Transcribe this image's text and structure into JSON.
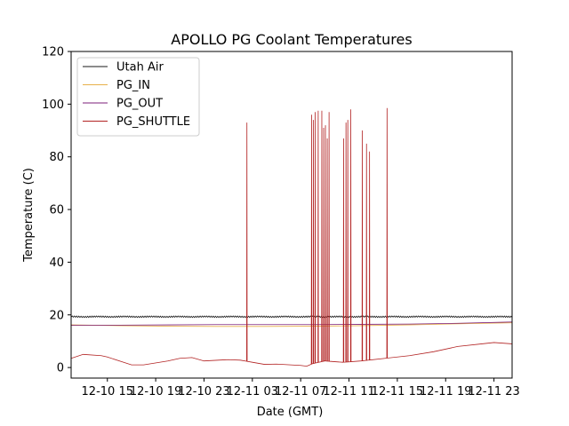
{
  "chart_data": {
    "type": "line",
    "title": "APOLLO PG Coolant Temperatures",
    "xlabel": "Date (GMT)",
    "ylabel": "Temperature (C)",
    "ylim": [
      -4,
      120
    ],
    "xlim": [
      12,
      48.5
    ],
    "y_ticks": [
      0,
      20,
      40,
      60,
      80,
      100,
      120
    ],
    "x_ticks": [
      {
        "value": 15,
        "label": "12-10 15"
      },
      {
        "value": 19,
        "label": "12-10 19"
      },
      {
        "value": 23,
        "label": "12-10 23"
      },
      {
        "value": 27,
        "label": "12-11 03"
      },
      {
        "value": 31,
        "label": "12-11 07"
      },
      {
        "value": 35,
        "label": "12-11 11"
      },
      {
        "value": 39,
        "label": "12-11 15"
      },
      {
        "value": 43,
        "label": "12-11 19"
      },
      {
        "value": 47,
        "label": "12-11 23"
      }
    ],
    "legend_position": "top-left",
    "series": [
      {
        "name": "Utah Air",
        "color": "#1a1a1a",
        "x": [
          12,
          48.5
        ],
        "y": [
          19.3,
          19.3
        ],
        "noise": 0.6
      },
      {
        "name": "PG_IN",
        "color": "#e8b04a",
        "x": [
          12,
          16,
          20,
          24,
          28,
          32,
          36,
          40,
          44,
          48.5
        ],
        "y": [
          16.2,
          15.9,
          15.7,
          15.6,
          15.6,
          15.7,
          15.9,
          16.2,
          16.6,
          17.0
        ]
      },
      {
        "name": "PG_OUT",
        "color": "#7b1e7a",
        "x": [
          12,
          16,
          20,
          24,
          28,
          32,
          36,
          40,
          44,
          48.5
        ],
        "y": [
          16.0,
          16.1,
          16.2,
          16.3,
          16.3,
          16.3,
          16.4,
          16.5,
          16.8,
          17.3
        ]
      },
      {
        "name": "PG_SHUTTLE",
        "color": "#b22222",
        "x": [
          12.0,
          13.0,
          14.5,
          15.0,
          17.0,
          18.0,
          20.0,
          21.0,
          22.0,
          23.0,
          25.0,
          26.0,
          27.0,
          28.0,
          29.0,
          31.0,
          31.5,
          32.0,
          33.0,
          34.5,
          36.0,
          38.0,
          40.0,
          42.0,
          44.0,
          46.0,
          47.0,
          48.5
        ],
        "y": [
          3.5,
          5.0,
          4.5,
          4.0,
          1.0,
          1.0,
          2.5,
          3.5,
          3.8,
          2.5,
          3.0,
          2.8,
          2.0,
          1.2,
          1.3,
          0.8,
          0.5,
          1.5,
          2.5,
          2.0,
          2.5,
          3.5,
          4.5,
          6.0,
          8.0,
          9.0,
          9.5,
          9.0
        ],
        "spikes": [
          {
            "x": 26.55,
            "y": 93
          },
          {
            "x": 31.9,
            "y": 96
          },
          {
            "x": 32.05,
            "y": 94
          },
          {
            "x": 32.2,
            "y": 97
          },
          {
            "x": 32.45,
            "y": 97.5
          },
          {
            "x": 32.75,
            "y": 97.5
          },
          {
            "x": 32.9,
            "y": 91
          },
          {
            "x": 33.05,
            "y": 92
          },
          {
            "x": 33.2,
            "y": 87
          },
          {
            "x": 33.35,
            "y": 97
          },
          {
            "x": 34.55,
            "y": 87
          },
          {
            "x": 34.75,
            "y": 93
          },
          {
            "x": 34.9,
            "y": 94
          },
          {
            "x": 35.15,
            "y": 98
          },
          {
            "x": 36.1,
            "y": 90
          },
          {
            "x": 36.45,
            "y": 85
          },
          {
            "x": 36.7,
            "y": 82
          },
          {
            "x": 38.15,
            "y": 98.5
          }
        ]
      }
    ]
  }
}
